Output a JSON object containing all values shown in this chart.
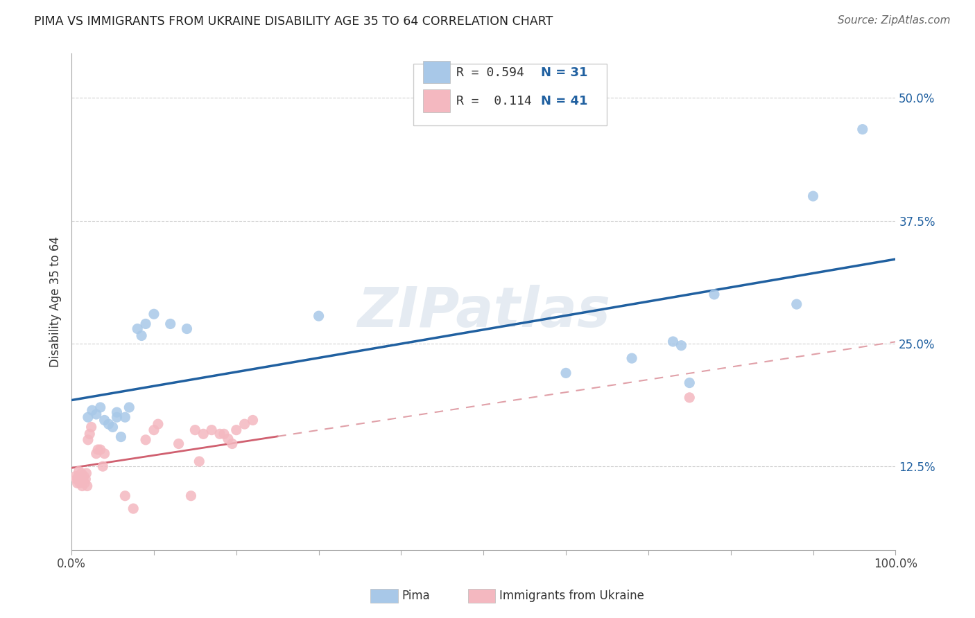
{
  "title": "PIMA VS IMMIGRANTS FROM UKRAINE DISABILITY AGE 35 TO 64 CORRELATION CHART",
  "source": "Source: ZipAtlas.com",
  "ylabel": "Disability Age 35 to 64",
  "xlim": [
    0.0,
    1.0
  ],
  "ylim": [
    0.04,
    0.545
  ],
  "y_ticks": [
    0.125,
    0.25,
    0.375,
    0.5
  ],
  "y_tick_labels": [
    "12.5%",
    "25.0%",
    "37.5%",
    "50.0%"
  ],
  "pima_color": "#a8c8e8",
  "ukraine_color": "#f4b8c0",
  "pima_line_color": "#2060a0",
  "ukraine_line_solid_color": "#d06070",
  "ukraine_line_dash_color": "#e0a0a8",
  "legend_text_color": "#333333",
  "legend_N_color": "#2060a0",
  "watermark": "ZIPatlas",
  "pima_x": [
    0.02,
    0.025,
    0.03,
    0.035,
    0.04,
    0.045,
    0.05,
    0.055,
    0.055,
    0.06,
    0.065,
    0.07,
    0.08,
    0.085,
    0.09,
    0.1,
    0.12,
    0.14,
    0.3,
    0.6,
    0.68,
    0.73,
    0.74,
    0.75,
    0.78,
    0.88,
    0.9,
    0.96
  ],
  "pima_y": [
    0.175,
    0.182,
    0.178,
    0.185,
    0.172,
    0.168,
    0.165,
    0.175,
    0.18,
    0.155,
    0.175,
    0.185,
    0.265,
    0.258,
    0.27,
    0.28,
    0.27,
    0.265,
    0.278,
    0.22,
    0.235,
    0.252,
    0.248,
    0.21,
    0.3,
    0.29,
    0.4,
    0.468
  ],
  "ukraine_x": [
    0.005,
    0.006,
    0.007,
    0.008,
    0.009,
    0.01,
    0.011,
    0.012,
    0.013,
    0.015,
    0.016,
    0.017,
    0.018,
    0.019,
    0.02,
    0.022,
    0.024,
    0.03,
    0.032,
    0.035,
    0.038,
    0.04,
    0.065,
    0.075,
    0.09,
    0.1,
    0.105,
    0.13,
    0.145,
    0.15,
    0.155,
    0.185,
    0.19,
    0.195,
    0.2,
    0.21,
    0.22,
    0.16,
    0.17,
    0.18,
    0.75
  ],
  "ukraine_y": [
    0.115,
    0.112,
    0.108,
    0.114,
    0.12,
    0.108,
    0.112,
    0.118,
    0.105,
    0.115,
    0.108,
    0.112,
    0.118,
    0.105,
    0.152,
    0.158,
    0.165,
    0.138,
    0.142,
    0.142,
    0.125,
    0.138,
    0.095,
    0.082,
    0.152,
    0.162,
    0.168,
    0.148,
    0.095,
    0.162,
    0.13,
    0.158,
    0.153,
    0.148,
    0.162,
    0.168,
    0.172,
    0.158,
    0.162,
    0.158,
    0.195
  ],
  "background_color": "#ffffff",
  "grid_color": "#d0d0d0"
}
